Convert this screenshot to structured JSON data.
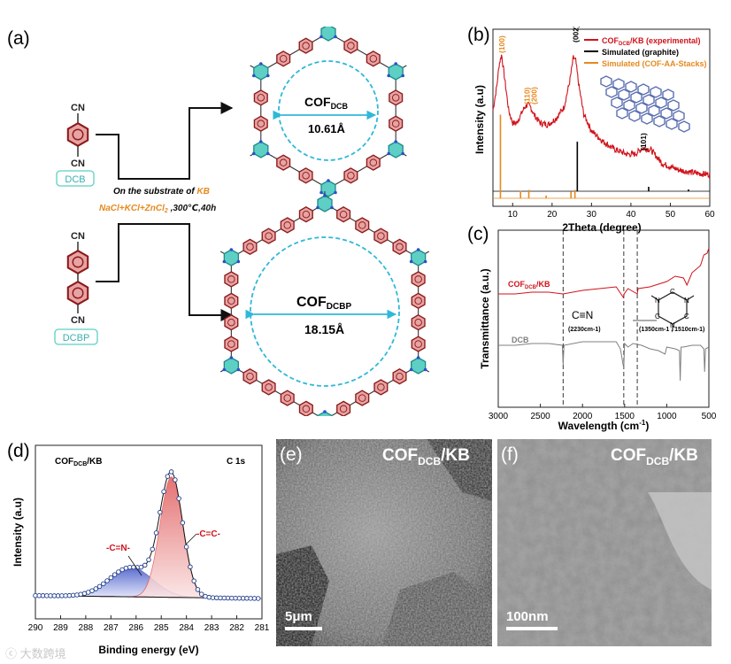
{
  "panel_labels": {
    "a": "(a)",
    "b": "(b)",
    "c": "(c)",
    "d": "(d)",
    "e": "(e)",
    "f": "(f)"
  },
  "scheme": {
    "monomer1": "DCB",
    "monomer2": "DCBP",
    "nitrile": "CN",
    "cond_line1_prefix": "On the substrate of ",
    "cond_line1_kb": "KB",
    "cond_line2": "NaCl+KCl+ZnCl",
    "cond_line2_sub": "2",
    "cond_line2_tail": " ,300℃,40h",
    "cof1_main": "COF",
    "cof1_sub": "DCB",
    "cof1_pore": "10.61Å",
    "cof2_main": "COF",
    "cof2_sub": "DCBP",
    "cof2_pore": "18.15Å"
  },
  "colors": {
    "accent_red": "#d0121b",
    "orange": "#e58a1f",
    "cyan": "#2fb8d8",
    "triazine": "#5ecfc4",
    "benzene": "#e8a3a3",
    "dcb_gray": "#7b7b7b"
  },
  "chart_data": [
    {
      "type": "line",
      "panel": "(b)",
      "xlabel": "2Theta (degree)",
      "ylabel": "Intensity (a.u)",
      "xlim": [
        5,
        60
      ],
      "xticks": [
        10,
        20,
        30,
        40,
        50,
        60
      ],
      "legend": [
        {
          "name": "COFDCB/KB (experimental)",
          "main": "COF",
          "sub": "DCB",
          "tail": "/KB (experimental)",
          "color": "#d0121b"
        },
        {
          "name": "Simulated (graphite)",
          "color": "#000000"
        },
        {
          "name": "Simulated (COF-AA-Stacks)",
          "color": "#e58a1f"
        }
      ],
      "legend_position": "top-right",
      "series": [
        {
          "name": "COFDCB/KB (experimental)",
          "x": [
            5,
            6,
            6.6,
            7.2,
            8,
            9,
            10,
            11,
            12,
            13,
            13.8,
            14.6,
            15.5,
            17,
            19,
            21,
            23,
            24.5,
            25.4,
            26,
            26.8,
            28,
            30,
            33,
            36,
            39,
            41,
            43,
            45,
            48,
            52,
            56,
            60
          ],
          "y": [
            0.58,
            0.74,
            0.88,
            0.94,
            0.78,
            0.58,
            0.5,
            0.5,
            0.55,
            0.6,
            0.62,
            0.6,
            0.55,
            0.5,
            0.49,
            0.53,
            0.6,
            0.77,
            0.92,
            0.9,
            0.74,
            0.56,
            0.45,
            0.38,
            0.33,
            0.3,
            0.3,
            0.34,
            0.33,
            0.24,
            0.2,
            0.18,
            0.17
          ]
        }
      ],
      "sticks_graphite": [
        [
          26.4,
          0.56
        ],
        [
          44.5,
          0.05
        ],
        [
          54.6,
          0.02
        ]
      ],
      "sticks_cof": [
        [
          6.9,
          0.9
        ],
        [
          12.0,
          0.08
        ],
        [
          14.1,
          0.09
        ],
        [
          18.5,
          0.03
        ],
        [
          24.8,
          0.07
        ],
        [
          25.8,
          0.09
        ]
      ],
      "annotations": [
        {
          "text": "(100)",
          "x": 7.2,
          "color": "#e58a1f"
        },
        {
          "text": "(110)",
          "x": 13.6,
          "color": "#e58a1f"
        },
        {
          "text": "(200)",
          "x": 15.4,
          "color": "#e58a1f"
        },
        {
          "text": "(002)",
          "x": 26.0,
          "color": "#000000"
        },
        {
          "text": "(101)",
          "x": 43.2,
          "color": "#000000"
        }
      ]
    },
    {
      "type": "line",
      "panel": "(c)",
      "xlabel": "Wavelength (cm",
      "xlabel_sup": "-1",
      "xlabel_tail": ")",
      "ylabel": "Transmittance (a.u.)",
      "xlim": [
        3000,
        500
      ],
      "xticks": [
        3000,
        2500,
        2000,
        1500,
        1000,
        500
      ],
      "dashed_lines": [
        2230,
        1510,
        1350
      ],
      "series": [
        {
          "name": "COFDCB/KB",
          "main": "COF",
          "sub": "DCB",
          "tail": "/KB",
          "color": "#d0121b",
          "x": [
            3000,
            2800,
            2600,
            2400,
            2230,
            2000,
            1800,
            1600,
            1515,
            1505,
            1460,
            1350,
            1340,
            1200,
            1000,
            900,
            800,
            760,
            700,
            600,
            560,
            520,
            500
          ],
          "y": [
            0.64,
            0.64,
            0.65,
            0.65,
            0.64,
            0.66,
            0.67,
            0.68,
            0.62,
            0.64,
            0.67,
            0.64,
            0.67,
            0.68,
            0.71,
            0.74,
            0.73,
            0.69,
            0.76,
            0.8,
            0.86,
            0.87,
            0.9
          ]
        },
        {
          "name": "DCB",
          "color": "#808080",
          "x": [
            3000,
            2800,
            2600,
            2400,
            2240,
            2230,
            2220,
            2000,
            1800,
            1600,
            1550,
            1510,
            1500,
            1460,
            1400,
            1300,
            1200,
            1100,
            1020,
            1000,
            900,
            850,
            840,
            830,
            800,
            700,
            600,
            560,
            550,
            540,
            500
          ],
          "y": [
            0.35,
            0.35,
            0.36,
            0.36,
            0.35,
            0.24,
            0.35,
            0.37,
            0.37,
            0.37,
            0.33,
            0.22,
            0.36,
            0.34,
            0.36,
            0.35,
            0.33,
            0.32,
            0.3,
            0.34,
            0.33,
            0.32,
            0.15,
            0.34,
            0.34,
            0.35,
            0.35,
            0.33,
            0.2,
            0.33,
            0.34
          ]
        }
      ],
      "annotations": [
        {
          "text": "C≡N"
        },
        {
          "text": "(2230cm-1)"
        },
        {
          "text": "(1350cm-1 , 1510cm-1)"
        }
      ]
    },
    {
      "type": "line",
      "panel": "(d)",
      "title_main": "COF",
      "title_sub": "DCB",
      "title_tail": "/KB",
      "corner": "C 1s",
      "xlabel": "Binding energy (eV)",
      "ylabel": "Intensity (a.u)",
      "xlim": [
        290,
        281
      ],
      "xticks": [
        290,
        289,
        288,
        287,
        286,
        285,
        284,
        283,
        282,
        281
      ],
      "peaks": [
        {
          "label": "-C=C-",
          "center": 284.6,
          "height": 0.82,
          "color": "#e05a5a"
        },
        {
          "label": "-C=N-",
          "center": 286.2,
          "height": 0.2,
          "color": "#3f55c8"
        }
      ]
    }
  ],
  "sem": {
    "e_label": "(e)",
    "e_title": "COF",
    "e_title_sub": "DCB",
    "e_title_tail": "/KB",
    "e_scale": "5μm",
    "f_label": "(f)",
    "f_title": "COF",
    "f_title_sub": "DCB",
    "f_title_tail": "/KB",
    "f_scale": "100nm"
  },
  "watermark": "大数跨境"
}
